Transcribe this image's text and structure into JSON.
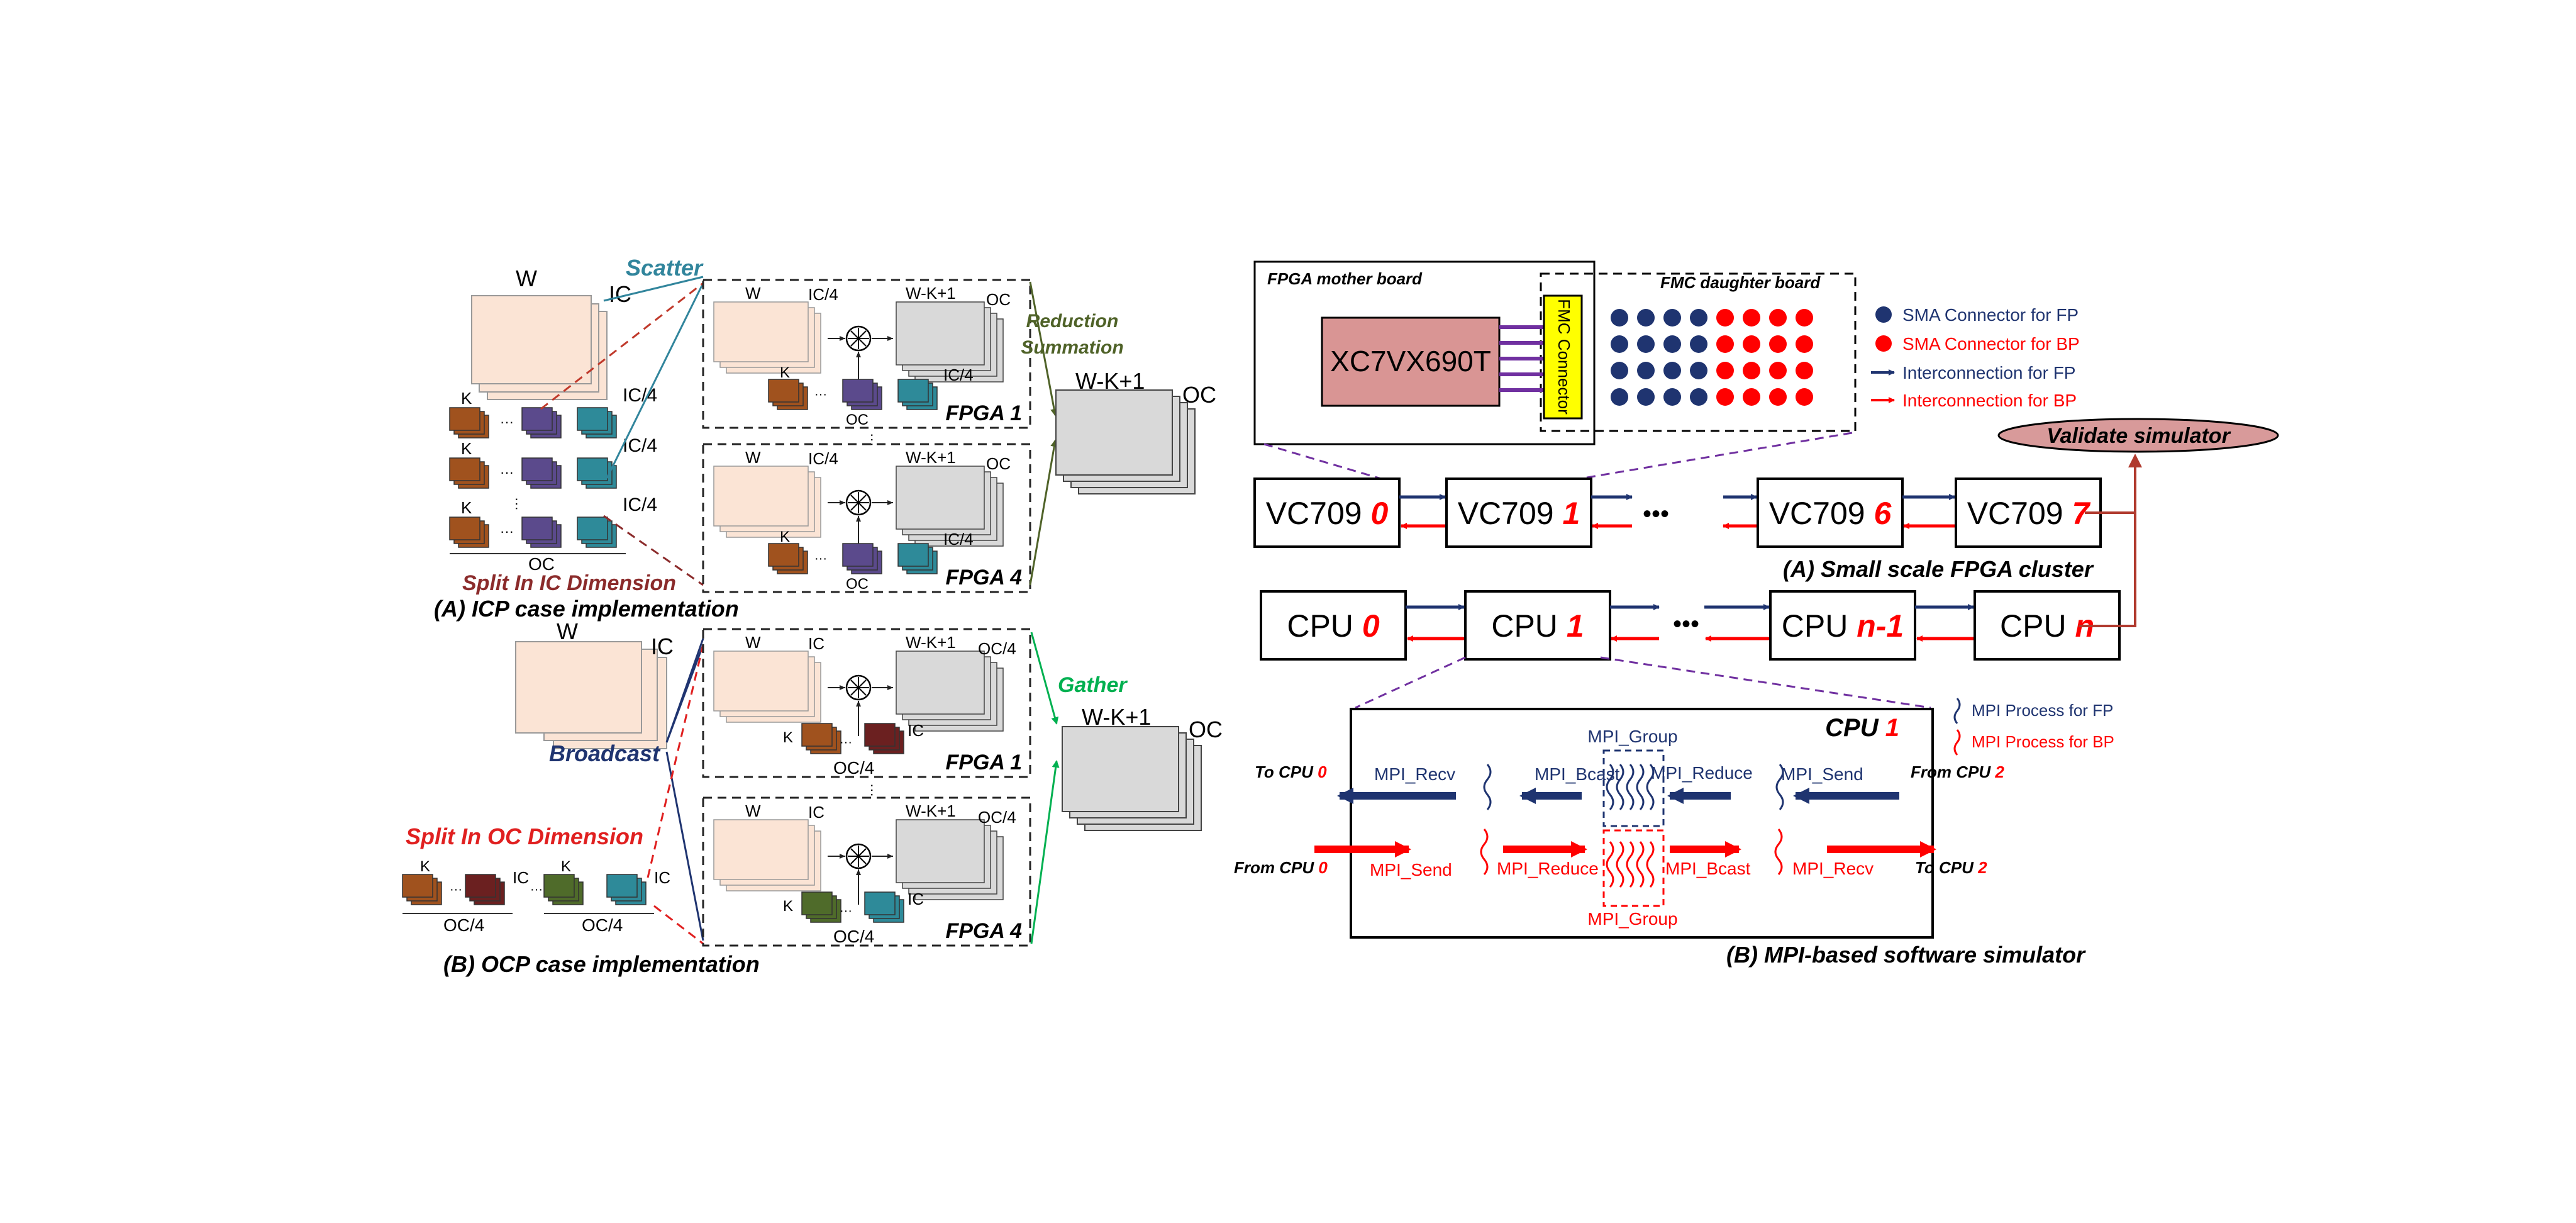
{
  "colors": {
    "navy": "#1f3470",
    "red": "#ff0000",
    "purple": "#7030a0",
    "teal_text": "#31859c",
    "olive_text": "#4f6228",
    "green_text": "#00b050",
    "maroon_text": "#8b2b2b",
    "split_oc_red": "#e02020",
    "validate_fill": "#d89a9a",
    "chip_fill": "#d99594",
    "fmc_yellow": "#ffff00",
    "weight_fill": "#fbe4d5",
    "output_fill": "#d9d9d9",
    "kernel_orange": "#a0521e",
    "kernel_purple": "#5b4a8c",
    "kernel_teal": "#2e8a99",
    "kernel_maroon": "#6b2020",
    "kernel_green": "#4f6b2a",
    "arrow_darkred": "#b03a2e"
  },
  "icp": {
    "caption": "(A) ICP case implementation",
    "scatter": "Scatter",
    "split_label": "Split In IC Dimension",
    "reduction": "Reduction",
    "summation": "Summation",
    "w": "W",
    "ic": "IC",
    "ic4": "IC/4",
    "oc": "OC",
    "k": "K",
    "wk1": "W-K+1",
    "dots": "···",
    "fpga1": "FPGA 1",
    "fpga4": "FPGA 4"
  },
  "ocp": {
    "caption": "(B) OCP case implementation",
    "broadcast": "Broadcast",
    "split_label": "Split In OC Dimension",
    "gather": "Gather",
    "w": "W",
    "ic": "IC",
    "oc": "OC",
    "oc4": "OC/4",
    "k": "K",
    "wk1": "W-K+1",
    "dots": "···",
    "fpga1": "FPGA 1",
    "fpga4": "FPGA 4"
  },
  "board": {
    "mother_label": "FPGA mother board",
    "daughter_label": "FMC daughter board",
    "chip": "XC7VX690T",
    "connector": "FMC Connector"
  },
  "legend_top": {
    "sma_fp": "SMA Connector for FP",
    "sma_bp": "SMA Connector for BP",
    "int_fp": "Interconnection for FP",
    "int_bp": "Interconnection for BP"
  },
  "validate": "Validate simulator",
  "cluster": {
    "caption": "(A) Small scale FPGA cluster",
    "nodes": [
      {
        "name": "VC709",
        "idx": "0"
      },
      {
        "name": "VC709",
        "idx": "1"
      },
      {
        "name": "VC709",
        "idx": "6"
      },
      {
        "name": "VC709",
        "idx": "7"
      }
    ],
    "ellipsis": "•••"
  },
  "cpus": {
    "nodes": [
      {
        "name": "CPU",
        "idx": "0"
      },
      {
        "name": "CPU",
        "idx": "1"
      },
      {
        "name": "CPU",
        "idx": "n-1"
      },
      {
        "name": "CPU",
        "idx": "n"
      }
    ],
    "ellipsis": "•••"
  },
  "mpi": {
    "caption": "(B) MPI-based software simulator",
    "cpu_title": "CPU",
    "cpu_idx": "1",
    "legend_fp": "MPI Process for FP",
    "legend_bp": "MPI Process for BP",
    "group": "MPI_Group",
    "recv": "MPI_Recv",
    "bcast": "MPI_Bcast",
    "reduce": "MPI_Reduce",
    "send": "MPI_Send",
    "to_cpu": "To CPU",
    "from_cpu": "From CPU",
    "idx0": "0",
    "idx2": "2"
  }
}
